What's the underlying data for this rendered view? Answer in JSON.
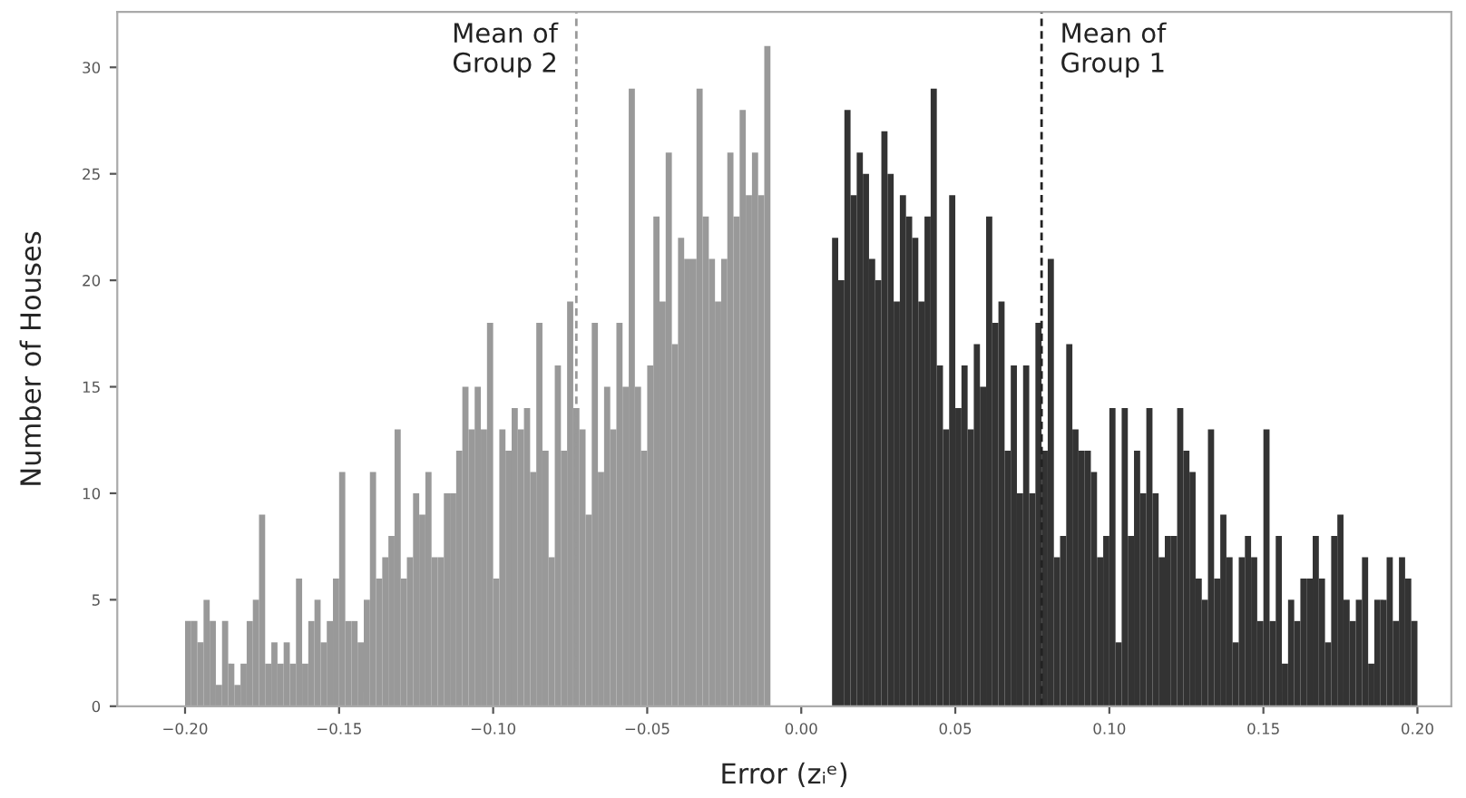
{
  "chart_data": {
    "type": "histogram",
    "xlabel": "Error (zᵢᵉ)",
    "ylabel": "Number of Houses",
    "bins": [
      -0.2,
      -0.198,
      -0.196,
      -0.194,
      -0.192,
      -0.19,
      -0.188,
      -0.186,
      -0.184,
      -0.182,
      -0.18,
      -0.178,
      -0.176,
      -0.174,
      -0.172,
      -0.17,
      -0.168,
      -0.166,
      -0.164,
      -0.162,
      -0.16,
      -0.158,
      -0.156,
      -0.154,
      -0.152,
      -0.15,
      -0.148,
      -0.146,
      -0.144,
      -0.142,
      -0.14,
      -0.138,
      -0.136,
      -0.134,
      -0.132,
      -0.13,
      -0.128,
      -0.126,
      -0.124,
      -0.122,
      -0.12,
      -0.118,
      -0.116,
      -0.114,
      -0.112,
      -0.11,
      -0.108,
      -0.106,
      -0.104,
      -0.102,
      -0.1,
      -0.098,
      -0.096,
      -0.094,
      -0.092,
      -0.09,
      -0.088,
      -0.086,
      -0.084,
      -0.082,
      -0.08,
      -0.078,
      -0.076,
      -0.074,
      -0.072,
      -0.07,
      -0.068,
      -0.066,
      -0.064,
      -0.062,
      -0.06,
      -0.058,
      -0.056,
      -0.054,
      -0.052,
      -0.05,
      -0.048,
      -0.046,
      -0.044,
      -0.042,
      -0.04,
      -0.038,
      -0.036,
      -0.034,
      -0.032,
      -0.03,
      -0.028,
      -0.026,
      -0.024,
      -0.022,
      -0.02,
      -0.018,
      -0.016,
      -0.014,
      -0.012,
      -0.01,
      -0.008,
      -0.006,
      -0.004,
      -0.002,
      0.0,
      0.002,
      0.004,
      0.006,
      0.008,
      0.01,
      0.012,
      0.014,
      0.016,
      0.018,
      0.02,
      0.022,
      0.024,
      0.026,
      0.028,
      0.03,
      0.032,
      0.034,
      0.036,
      0.038,
      0.04,
      0.042,
      0.044,
      0.046,
      0.048,
      0.05,
      0.052,
      0.054,
      0.056,
      0.058,
      0.06,
      0.062,
      0.064,
      0.066,
      0.068,
      0.07,
      0.072,
      0.074,
      0.076,
      0.078,
      0.08,
      0.082,
      0.084,
      0.086,
      0.088,
      0.09,
      0.092,
      0.094,
      0.096,
      0.098,
      0.1,
      0.102,
      0.104,
      0.106,
      0.108,
      0.11,
      0.112,
      0.114,
      0.116,
      0.118,
      0.12,
      0.122,
      0.124,
      0.126,
      0.128,
      0.13,
      0.132,
      0.134,
      0.136,
      0.138,
      0.14,
      0.142,
      0.144,
      0.146,
      0.148,
      0.15,
      0.152,
      0.154,
      0.156,
      0.158,
      0.16,
      0.162,
      0.164,
      0.166,
      0.168,
      0.17,
      0.172,
      0.174,
      0.176,
      0.178,
      0.18,
      0.182,
      0.184,
      0.186,
      0.188,
      0.19,
      0.192,
      0.194,
      0.196,
      0.198,
      0.2
    ],
    "series": [
      {
        "color": "#999999",
        "values": [
          4,
          4,
          3,
          5,
          4,
          1,
          4,
          2,
          1,
          2,
          4,
          5,
          9,
          2,
          3,
          2,
          3,
          2,
          6,
          2,
          4,
          5,
          3,
          4,
          6,
          11,
          4,
          4,
          3,
          5,
          11,
          6,
          7,
          8,
          13,
          6,
          7,
          10,
          9,
          11,
          7,
          7,
          10,
          10,
          12,
          15,
          13,
          15,
          13,
          18,
          6,
          13,
          12,
          14,
          13,
          14,
          11,
          18,
          12,
          7,
          16,
          12,
          19,
          14,
          13,
          9,
          18,
          11,
          15,
          13,
          18,
          15,
          29,
          15,
          12,
          16,
          23,
          19,
          26,
          17,
          22,
          21,
          21,
          29,
          23,
          21,
          19,
          21,
          26,
          23,
          28,
          24,
          26,
          24,
          31,
          null,
          null,
          null,
          null,
          null,
          null,
          null,
          null,
          null,
          null,
          null,
          null,
          null,
          null,
          null,
          null,
          null,
          null,
          null,
          null,
          null,
          null,
          null,
          null,
          null,
          null,
          null,
          null,
          null,
          null,
          null,
          null,
          null,
          null,
          null,
          null,
          null,
          null,
          null,
          null,
          null,
          null,
          null,
          null,
          null,
          null,
          null,
          null,
          null,
          null,
          null,
          null,
          null,
          null,
          null,
          null,
          null,
          null,
          null,
          null,
          null,
          null,
          null,
          null,
          null,
          null,
          null,
          null,
          null,
          null,
          null,
          null,
          null,
          null,
          null,
          null,
          null,
          null,
          null,
          null,
          null,
          null,
          null,
          null,
          null,
          null,
          null,
          null,
          null,
          null,
          null,
          null,
          null,
          null,
          null,
          null,
          null,
          null,
          null,
          null,
          null,
          null,
          null,
          null,
          null
        ]
      },
      {
        "color": "#333333",
        "values": [
          null,
          null,
          null,
          null,
          null,
          null,
          null,
          null,
          null,
          null,
          null,
          null,
          null,
          null,
          null,
          null,
          null,
          null,
          null,
          null,
          null,
          null,
          null,
          null,
          null,
          null,
          null,
          null,
          null,
          null,
          null,
          null,
          null,
          null,
          null,
          null,
          null,
          null,
          null,
          null,
          null,
          null,
          null,
          null,
          null,
          null,
          null,
          null,
          null,
          null,
          null,
          null,
          null,
          null,
          null,
          null,
          null,
          null,
          null,
          null,
          null,
          null,
          null,
          null,
          null,
          null,
          null,
          null,
          null,
          null,
          null,
          null,
          null,
          null,
          null,
          null,
          null,
          null,
          null,
          null,
          null,
          null,
          null,
          null,
          null,
          null,
          null,
          null,
          null,
          null,
          null,
          null,
          null,
          null,
          null,
          null,
          null,
          null,
          null,
          null,
          null,
          null,
          null,
          null,
          null,
          22,
          20,
          28,
          24,
          26,
          25,
          21,
          20,
          27,
          25,
          19,
          24,
          23,
          22,
          19,
          23,
          29,
          16,
          13,
          24,
          14,
          16,
          13,
          17,
          15,
          23,
          18,
          19,
          12,
          16,
          10,
          16,
          10,
          18,
          12,
          21,
          7,
          8,
          17,
          13,
          12,
          12,
          11,
          7,
          8,
          14,
          3,
          14,
          8,
          12,
          10,
          14,
          10,
          7,
          8,
          8,
          14,
          12,
          11,
          6,
          5,
          13,
          6,
          9,
          7,
          3,
          7,
          8,
          7,
          4,
          13,
          4,
          8,
          2,
          5,
          4,
          6,
          6,
          8,
          6,
          3,
          8,
          9,
          5,
          4,
          5,
          7,
          2,
          5,
          5,
          7,
          4,
          7,
          6,
          4
        ]
      }
    ],
    "ref_lines": [
      {
        "axis": "x",
        "value": -0.073,
        "label": "Mean of\nGroup 2",
        "color": "#999999",
        "line_style": "dashed"
      },
      {
        "axis": "x",
        "value": 0.078,
        "label": "Mean of\nGroup 1",
        "color": "#222222",
        "line_style": "dashed"
      }
    ],
    "xlim": [
      -0.222,
      0.211
    ],
    "ylim": [
      0,
      32.6
    ],
    "xticks": [
      {
        "value": -0.2,
        "label": "−0.20"
      },
      {
        "value": -0.15,
        "label": "−0.15"
      },
      {
        "value": -0.1,
        "label": "−0.10"
      },
      {
        "value": -0.05,
        "label": "−0.05"
      },
      {
        "value": 0.0,
        "label": "0.00"
      },
      {
        "value": 0.05,
        "label": "0.05"
      },
      {
        "value": 0.1,
        "label": "0.10"
      },
      {
        "value": 0.15,
        "label": "0.15"
      },
      {
        "value": 0.2,
        "label": "0.20"
      }
    ],
    "yticks": [
      0,
      5,
      10,
      15,
      20,
      25,
      30
    ],
    "grid": false,
    "legend": false
  }
}
